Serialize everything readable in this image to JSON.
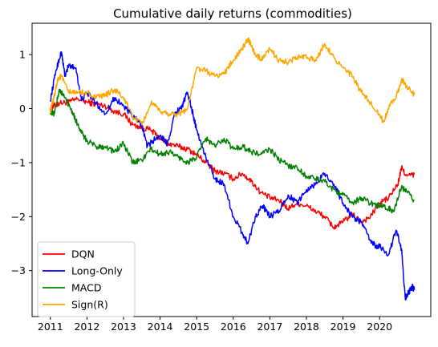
{
  "chart_data": {
    "type": "line",
    "title": "Cumulative daily returns (commodities)",
    "xlabel": "",
    "ylabel": "",
    "xlim": [
      2010.5,
      2021.4
    ],
    "ylim": [
      -3.85,
      1.58
    ],
    "x_ticks": [
      {
        "value": 2011,
        "label": "2011"
      },
      {
        "value": 2012,
        "label": "2012"
      },
      {
        "value": 2013,
        "label": "2013"
      },
      {
        "value": 2014,
        "label": "2014"
      },
      {
        "value": 2015,
        "label": "2015"
      },
      {
        "value": 2016,
        "label": "2016"
      },
      {
        "value": 2017,
        "label": "2017"
      },
      {
        "value": 2018,
        "label": "2018"
      },
      {
        "value": 2019,
        "label": "2019"
      },
      {
        "value": 2020,
        "label": "2020"
      }
    ],
    "y_ticks": [
      {
        "value": 1,
        "label": "1"
      },
      {
        "value": 0,
        "label": "0"
      },
      {
        "value": -1,
        "label": "−1"
      },
      {
        "value": -2,
        "label": "−2"
      },
      {
        "value": -3,
        "label": "−3"
      }
    ],
    "grid": false,
    "legend_position": "lower-left",
    "series": [
      {
        "name": "DQN",
        "color": "#ff0000",
        "points": [
          [
            2011.0,
            0.0
          ],
          [
            2011.1,
            0.05
          ],
          [
            2011.25,
            0.1
          ],
          [
            2011.5,
            0.12
          ],
          [
            2011.75,
            0.18
          ],
          [
            2012.0,
            0.12
          ],
          [
            2012.25,
            0.08
          ],
          [
            2012.5,
            0.05
          ],
          [
            2012.75,
            -0.05
          ],
          [
            2013.0,
            -0.1
          ],
          [
            2013.25,
            -0.3
          ],
          [
            2013.5,
            -0.35
          ],
          [
            2013.75,
            -0.4
          ],
          [
            2014.0,
            -0.55
          ],
          [
            2014.25,
            -0.65
          ],
          [
            2014.5,
            -0.7
          ],
          [
            2014.75,
            -0.75
          ],
          [
            2015.0,
            -0.85
          ],
          [
            2015.25,
            -1.0
          ],
          [
            2015.5,
            -1.15
          ],
          [
            2015.75,
            -1.2
          ],
          [
            2016.0,
            -1.3
          ],
          [
            2016.25,
            -1.2
          ],
          [
            2016.5,
            -1.35
          ],
          [
            2016.75,
            -1.55
          ],
          [
            2017.0,
            -1.65
          ],
          [
            2017.25,
            -1.7
          ],
          [
            2017.5,
            -1.85
          ],
          [
            2017.75,
            -1.75
          ],
          [
            2018.0,
            -1.8
          ],
          [
            2018.25,
            -1.9
          ],
          [
            2018.5,
            -2.0
          ],
          [
            2018.75,
            -2.2
          ],
          [
            2019.0,
            -2.1
          ],
          [
            2019.25,
            -1.95
          ],
          [
            2019.5,
            -2.1
          ],
          [
            2019.75,
            -2.0
          ],
          [
            2020.0,
            -1.75
          ],
          [
            2020.25,
            -1.65
          ],
          [
            2020.5,
            -1.4
          ],
          [
            2020.6,
            -1.1
          ],
          [
            2020.75,
            -1.25
          ],
          [
            2020.95,
            -1.22
          ]
        ]
      },
      {
        "name": "Long-Only",
        "color": "#0000ff",
        "points": [
          [
            2011.0,
            0.15
          ],
          [
            2011.15,
            0.7
          ],
          [
            2011.3,
            1.05
          ],
          [
            2011.4,
            0.6
          ],
          [
            2011.5,
            0.8
          ],
          [
            2011.7,
            0.75
          ],
          [
            2011.85,
            0.15
          ],
          [
            2012.0,
            0.3
          ],
          [
            2012.25,
            0.1
          ],
          [
            2012.5,
            -0.1
          ],
          [
            2012.75,
            0.2
          ],
          [
            2013.0,
            0.05
          ],
          [
            2013.25,
            -0.15
          ],
          [
            2013.5,
            -0.3
          ],
          [
            2013.65,
            -0.7
          ],
          [
            2013.8,
            -0.6
          ],
          [
            2014.0,
            -0.5
          ],
          [
            2014.2,
            -0.65
          ],
          [
            2014.4,
            -0.1
          ],
          [
            2014.6,
            0.05
          ],
          [
            2014.75,
            0.3
          ],
          [
            2014.9,
            -0.1
          ],
          [
            2015.0,
            -0.4
          ],
          [
            2015.25,
            -0.9
          ],
          [
            2015.5,
            -1.3
          ],
          [
            2015.75,
            -1.4
          ],
          [
            2016.0,
            -2.0
          ],
          [
            2016.25,
            -2.3
          ],
          [
            2016.4,
            -2.5
          ],
          [
            2016.6,
            -2.0
          ],
          [
            2016.8,
            -1.8
          ],
          [
            2017.0,
            -2.0
          ],
          [
            2017.25,
            -1.9
          ],
          [
            2017.5,
            -1.6
          ],
          [
            2017.75,
            -1.75
          ],
          [
            2018.0,
            -1.5
          ],
          [
            2018.25,
            -1.4
          ],
          [
            2018.5,
            -1.2
          ],
          [
            2018.75,
            -1.4
          ],
          [
            2019.0,
            -1.75
          ],
          [
            2019.25,
            -2.0
          ],
          [
            2019.5,
            -2.1
          ],
          [
            2019.75,
            -2.45
          ],
          [
            2019.9,
            -2.55
          ],
          [
            2020.0,
            -2.55
          ],
          [
            2020.25,
            -2.7
          ],
          [
            2020.45,
            -2.25
          ],
          [
            2020.6,
            -2.6
          ],
          [
            2020.7,
            -3.5
          ],
          [
            2020.8,
            -3.4
          ],
          [
            2020.9,
            -3.3
          ],
          [
            2020.95,
            -3.35
          ]
        ]
      },
      {
        "name": "MACD",
        "color": "#008000",
        "points": [
          [
            2011.0,
            -0.05
          ],
          [
            2011.1,
            -0.1
          ],
          [
            2011.25,
            0.35
          ],
          [
            2011.4,
            0.2
          ],
          [
            2011.6,
            -0.05
          ],
          [
            2011.75,
            -0.3
          ],
          [
            2011.9,
            -0.5
          ],
          [
            2012.0,
            -0.6
          ],
          [
            2012.25,
            -0.7
          ],
          [
            2012.5,
            -0.7
          ],
          [
            2012.75,
            -0.8
          ],
          [
            2013.0,
            -0.65
          ],
          [
            2013.25,
            -1.0
          ],
          [
            2013.5,
            -0.95
          ],
          [
            2013.75,
            -0.75
          ],
          [
            2014.0,
            -0.85
          ],
          [
            2014.25,
            -0.8
          ],
          [
            2014.5,
            -0.9
          ],
          [
            2014.75,
            -1.0
          ],
          [
            2015.0,
            -0.9
          ],
          [
            2015.25,
            -0.55
          ],
          [
            2015.5,
            -0.7
          ],
          [
            2015.75,
            -0.55
          ],
          [
            2016.0,
            -0.75
          ],
          [
            2016.25,
            -0.7
          ],
          [
            2016.5,
            -0.8
          ],
          [
            2016.75,
            -0.85
          ],
          [
            2017.0,
            -0.75
          ],
          [
            2017.25,
            -0.95
          ],
          [
            2017.5,
            -1.05
          ],
          [
            2017.75,
            -1.1
          ],
          [
            2018.0,
            -1.25
          ],
          [
            2018.25,
            -1.3
          ],
          [
            2018.5,
            -1.35
          ],
          [
            2018.75,
            -1.5
          ],
          [
            2019.0,
            -1.6
          ],
          [
            2019.25,
            -1.75
          ],
          [
            2019.5,
            -1.65
          ],
          [
            2019.75,
            -1.75
          ],
          [
            2020.0,
            -1.8
          ],
          [
            2020.25,
            -1.85
          ],
          [
            2020.4,
            -1.9
          ],
          [
            2020.6,
            -1.45
          ],
          [
            2020.75,
            -1.55
          ],
          [
            2020.95,
            -1.7
          ]
        ]
      },
      {
        "name": "Sign(R)",
        "color": "#ffa500",
        "points": [
          [
            2011.0,
            -0.05
          ],
          [
            2011.1,
            0.2
          ],
          [
            2011.2,
            0.55
          ],
          [
            2011.3,
            0.6
          ],
          [
            2011.5,
            0.3
          ],
          [
            2011.75,
            0.3
          ],
          [
            2012.0,
            0.3
          ],
          [
            2012.25,
            0.2
          ],
          [
            2012.5,
            0.25
          ],
          [
            2012.75,
            0.35
          ],
          [
            2013.0,
            0.2
          ],
          [
            2013.25,
            -0.15
          ],
          [
            2013.5,
            -0.3
          ],
          [
            2013.75,
            0.1
          ],
          [
            2014.0,
            -0.05
          ],
          [
            2014.25,
            -0.1
          ],
          [
            2014.5,
            -0.1
          ],
          [
            2014.75,
            0.0
          ],
          [
            2015.0,
            0.75
          ],
          [
            2015.25,
            0.7
          ],
          [
            2015.5,
            0.6
          ],
          [
            2015.75,
            0.65
          ],
          [
            2016.0,
            0.9
          ],
          [
            2016.25,
            1.1
          ],
          [
            2016.4,
            1.3
          ],
          [
            2016.6,
            1.0
          ],
          [
            2016.8,
            0.9
          ],
          [
            2017.0,
            1.1
          ],
          [
            2017.25,
            0.9
          ],
          [
            2017.5,
            0.85
          ],
          [
            2017.75,
            0.95
          ],
          [
            2018.0,
            0.95
          ],
          [
            2018.25,
            0.9
          ],
          [
            2018.5,
            1.2
          ],
          [
            2018.75,
            0.95
          ],
          [
            2019.0,
            0.75
          ],
          [
            2019.25,
            0.6
          ],
          [
            2019.5,
            0.3
          ],
          [
            2019.75,
            0.1
          ],
          [
            2020.0,
            -0.1
          ],
          [
            2020.1,
            -0.25
          ],
          [
            2020.25,
            0.0
          ],
          [
            2020.5,
            0.3
          ],
          [
            2020.6,
            0.55
          ],
          [
            2020.75,
            0.4
          ],
          [
            2020.95,
            0.25
          ]
        ]
      }
    ]
  }
}
